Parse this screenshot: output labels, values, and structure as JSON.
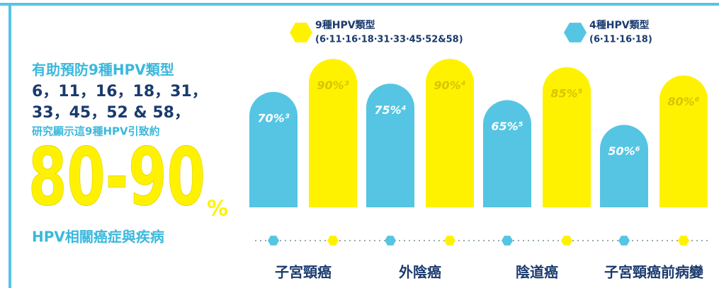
{
  "chart_data": {
    "type": "bar",
    "annotations": [
      "有助預防9種HPV類型",
      "6，11，16，18，31，",
      "33，45，52 & 58，",
      "研究顯示這9種HPV引致約",
      "80-90",
      "%",
      "HPV相關癌症與疾病"
    ],
    "categories": [
      "子宮頸癌",
      "外陰癌",
      "陰道癌",
      "子宮頸癌前病變"
    ],
    "series": [
      {
        "name": "4種HPV類型",
        "detail": "(6‧11‧16‧18)",
        "color": "#55c5e3",
        "values": [
          70,
          75,
          65,
          50
        ],
        "value_labels": [
          "70%³",
          "75%⁴",
          "65%⁵",
          "50%⁶"
        ]
      },
      {
        "name": "9種HPV類型",
        "detail": "(6‧11‧16‧18‧31‧33‧45‧52&58)",
        "color": "#fff200",
        "values": [
          90,
          90,
          85,
          80
        ],
        "value_labels": [
          "90%³",
          "90%⁴",
          "85%⁵",
          "80%⁶"
        ]
      }
    ],
    "ylim": [
      0,
      100
    ]
  }
}
